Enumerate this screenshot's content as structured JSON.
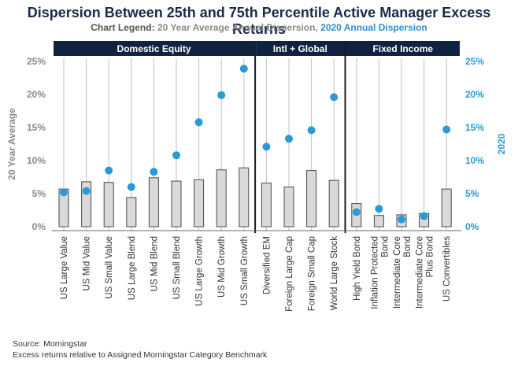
{
  "title": "Dispersion Between 25th and 75th Percentile Active Manager Excess Returns",
  "legend": {
    "prefix": "Chart Legend:",
    "avg_label": "20 Year Average Annual Dispersion",
    "separator": ",",
    "label_2020": "2020 Annual Dispersion"
  },
  "footer": {
    "source": "Source: Morningstar",
    "note": "Excess returns relative to Assigned Morningstar Category Benchmark"
  },
  "colors": {
    "header_bg": "#0f2240",
    "bar_fill": "#d9d9d9",
    "bar_stroke": "#4a4a4a",
    "dot": "#2a9ad6",
    "left_axis": "#8a8a8a",
    "right_axis": "#2a9ad6"
  },
  "chart_data": {
    "type": "bar",
    "title": "Dispersion Between 25th and 75th Percentile Active Manager Excess Returns",
    "left_axis_label": "20 Year Average",
    "right_axis_label": "2020",
    "ylim": [
      0,
      25
    ],
    "ticks": [
      "0%",
      "5%",
      "10%",
      "15%",
      "20%",
      "25%"
    ],
    "tick_values": [
      0,
      5,
      10,
      15,
      20,
      25
    ],
    "grid": false,
    "groups": [
      {
        "label": "Domestic Equity",
        "start": 0,
        "end": 8
      },
      {
        "label": "Intl + Global",
        "start": 9,
        "end": 12
      },
      {
        "label": "Fixed Income",
        "start": 13,
        "end": 17
      }
    ],
    "categories": [
      "US Large Value",
      "US Mid Value",
      "US Small Value",
      "US Large Blend",
      "US Mid Blend",
      "US Small Blend",
      "US Large Growth",
      "US Mid Growth",
      "US Small Growth",
      "Diversified EM",
      "Foreign Large Cap",
      "Foreign Small Cap",
      "World Large Stock",
      "High Yield Bond",
      "Inflation Protected Bond",
      "Intermediate Core Bond",
      "Intermediate Core Plus Bond",
      "US Convertibles"
    ],
    "category_lines": [
      [
        "US Large Value"
      ],
      [
        "US Mid Value"
      ],
      [
        "US Small Value"
      ],
      [
        "US Large Blend"
      ],
      [
        "US Mid Blend"
      ],
      [
        "US Small Blend"
      ],
      [
        "US Large Growth"
      ],
      [
        "US Mid Growth"
      ],
      [
        "US Small Growth"
      ],
      [
        "Diversified EM"
      ],
      [
        "Foreign Large Cap"
      ],
      [
        "Foreign Small Cap"
      ],
      [
        "World Large Stock"
      ],
      [
        "High Yield Bond"
      ],
      [
        "Inflation Protected",
        "Bond"
      ],
      [
        "Intermediate Core",
        "Bond"
      ],
      [
        "Intermediate Core",
        "Plus Bond"
      ],
      [
        "US Convertibles"
      ]
    ],
    "series": [
      {
        "name": "20 Year Average Annual Dispersion",
        "type": "bar",
        "values": [
          5.7,
          6.8,
          6.7,
          4.4,
          7.4,
          6.9,
          7.1,
          8.6,
          8.9,
          6.6,
          6.0,
          8.5,
          7.0,
          3.5,
          1.7,
          1.8,
          2.0,
          5.7
        ]
      },
      {
        "name": "2020 Annual Dispersion",
        "type": "scatter",
        "values": [
          5.2,
          5.4,
          8.5,
          6.0,
          8.3,
          10.8,
          15.8,
          19.9,
          23.9,
          12.1,
          13.3,
          14.6,
          19.6,
          2.2,
          2.7,
          1.1,
          1.6,
          14.7
        ]
      }
    ]
  }
}
